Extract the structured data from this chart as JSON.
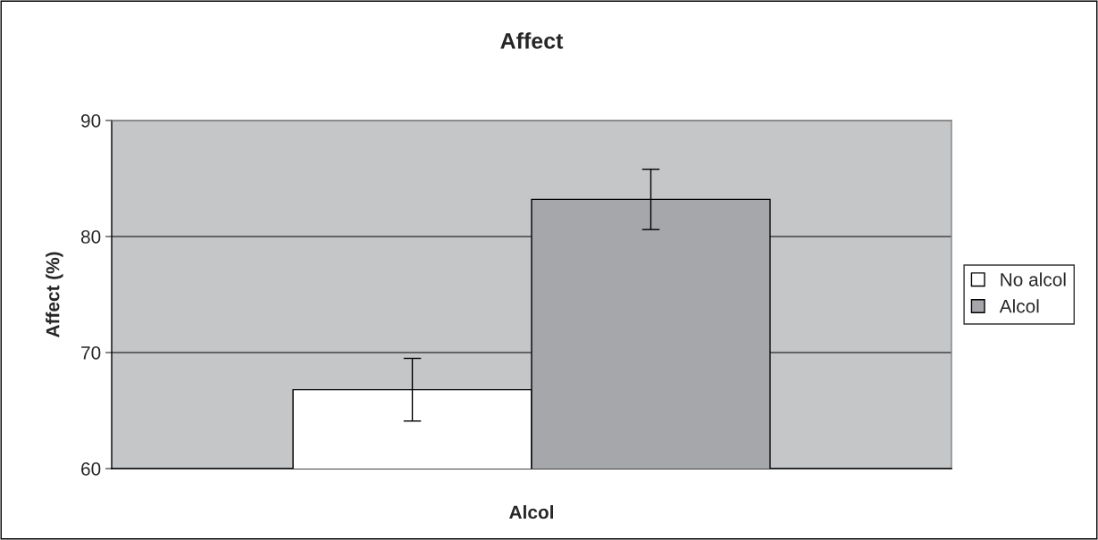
{
  "chart_data": {
    "type": "bar",
    "title": "Affect",
    "xlabel": "Alcol",
    "ylabel": "Affect (%)",
    "categories": [
      null
    ],
    "series": [
      {
        "name": "No alcol",
        "color": "#ffffff",
        "values": [
          66.8
        ],
        "errors": [
          2.7
        ]
      },
      {
        "name": "Alcol",
        "color": "#a6a7ab",
        "values": [
          83.2
        ],
        "errors": [
          2.6
        ]
      }
    ],
    "ylim": [
      60,
      90
    ],
    "yticks": [
      60,
      70,
      80,
      90
    ],
    "grid": "y",
    "legend": "right"
  }
}
